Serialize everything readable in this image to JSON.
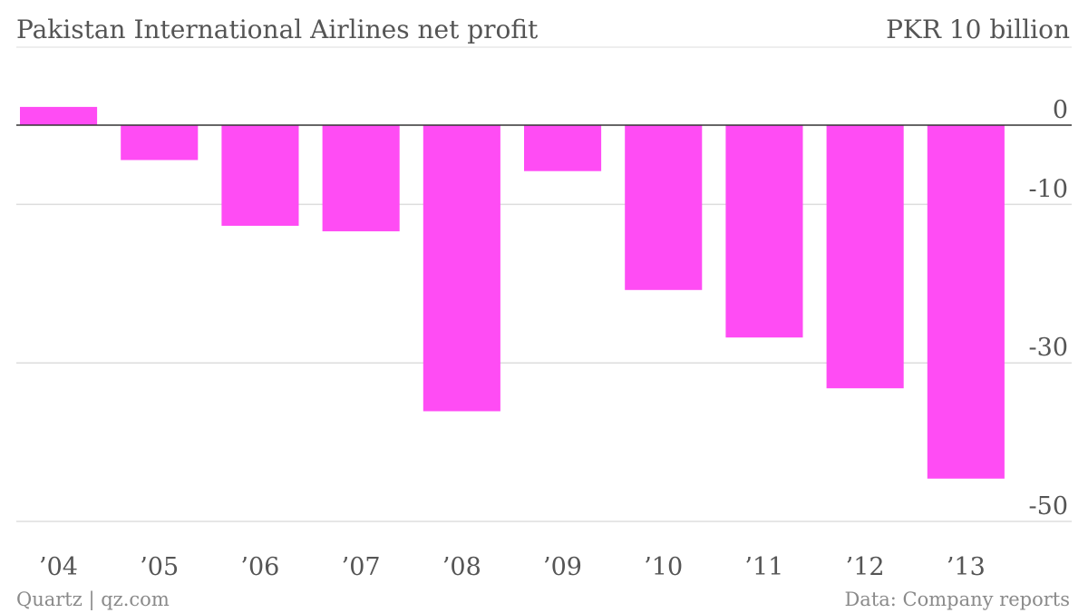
{
  "header": {
    "title": "Pakistan International Airlines net profit",
    "unit": "PKR 10 billion"
  },
  "footer": {
    "credit": "Quartz | qz.com",
    "source": "Data: Company reports"
  },
  "colors": {
    "bar": "#ff4cf4",
    "grid": "#dddddd",
    "zero_line": "#333333",
    "text": "#555555",
    "footer_text": "#8a8a8a"
  },
  "chart_data": {
    "type": "bar",
    "title": "Pakistan International Airlines net profit",
    "unit": "PKR 10 billion",
    "categories": [
      "’04",
      "’05",
      "’06",
      "’07",
      "’08",
      "’09",
      "’10",
      "’11",
      "’12",
      "’13"
    ],
    "values": [
      2.3,
      -4.4,
      -12.7,
      -13.4,
      -36.1,
      -5.8,
      -20.8,
      -26.8,
      -33.2,
      -44.6
    ],
    "ylim": [
      -50,
      3
    ],
    "yticks": [
      0,
      -10,
      -30,
      -50
    ],
    "ytick_labels": [
      "0",
      "-10",
      "-30",
      "-50"
    ],
    "grid": true,
    "axis_position": "right"
  }
}
